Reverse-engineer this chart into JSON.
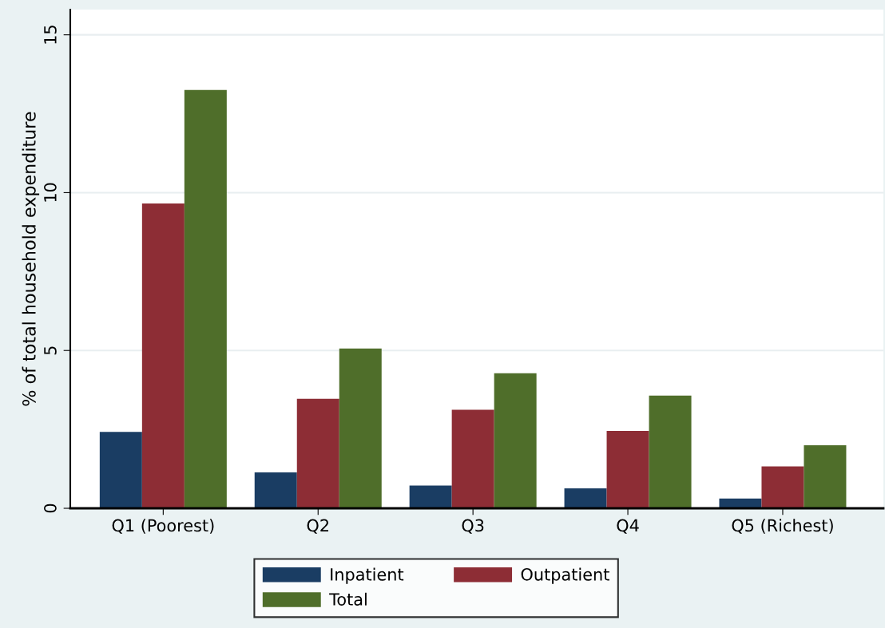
{
  "chart_data": {
    "type": "bar",
    "ylabel": "% of total household expenditure",
    "categories": [
      "Q1 (Poorest)",
      "Q2",
      "Q3",
      "Q4",
      "Q5 (Richest)"
    ],
    "series": [
      {
        "name": "Inpatient",
        "color": "#1a3d63",
        "values": [
          2.42,
          1.14,
          0.72,
          0.63,
          0.31
        ]
      },
      {
        "name": "Outpatient",
        "color": "#8d2d35",
        "values": [
          9.66,
          3.47,
          3.12,
          2.45,
          1.33
        ]
      },
      {
        "name": "Total",
        "color": "#4f6e2a",
        "values": [
          13.25,
          5.06,
          4.28,
          3.57,
          2.0
        ]
      }
    ],
    "ylim": [
      0,
      15.8
    ],
    "yticks": [
      0,
      5,
      10,
      15
    ],
    "grid": "y",
    "legend": "bottom"
  }
}
